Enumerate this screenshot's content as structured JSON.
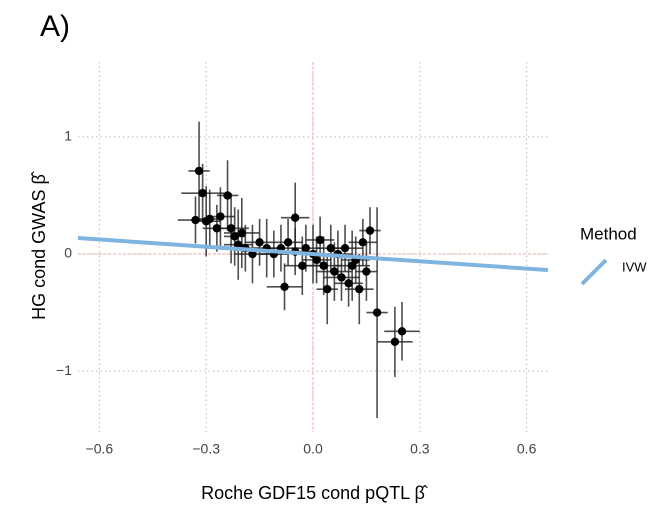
{
  "chart_data": {
    "type": "scatter",
    "title": "A)",
    "x_label": "Roche GDF15 cond pQTL  β̂",
    "y_label": "HG cond GWAS  β̂",
    "xlim": [
      -0.66,
      0.66
    ],
    "ylim": [
      -1.52,
      1.64
    ],
    "xticks": [
      {
        "value": -0.6,
        "label": "−0.6"
      },
      {
        "value": -0.3,
        "label": "−0.3"
      },
      {
        "value": 0,
        "label": "0.0"
      },
      0.3,
      0.6
    ],
    "yticks": [
      {
        "value": -1,
        "label": "−1"
      },
      0,
      1
    ],
    "grid": true,
    "hline": 0,
    "vline": 0,
    "points": {
      "color": "#000000",
      "x": [
        -0.33,
        -0.32,
        -0.31,
        -0.3,
        -0.29,
        -0.27,
        -0.26,
        -0.24,
        -0.23,
        -0.22,
        -0.2,
        -0.19,
        -0.17,
        -0.15,
        -0.13,
        -0.11,
        -0.09,
        -0.08,
        -0.07,
        -0.05,
        -0.05,
        -0.03,
        -0.02,
        0.0,
        0.01,
        0.02,
        0.03,
        0.05,
        0.06,
        0.07,
        0.08,
        0.09,
        0.1,
        0.11,
        0.12,
        0.13,
        0.14,
        0.15,
        0.16,
        0.18,
        0.23,
        0.25,
        -0.21,
        0.04
      ],
      "values": [
        0.29,
        0.71,
        0.52,
        0.28,
        0.3,
        0.22,
        0.32,
        0.5,
        0.22,
        0.15,
        0.18,
        0.05,
        0.0,
        0.1,
        0.05,
        0.0,
        0.05,
        -0.28,
        0.1,
        0.31,
        0.02,
        -0.1,
        0.05,
        0.0,
        -0.05,
        0.12,
        -0.1,
        0.05,
        -0.15,
        0.0,
        -0.2,
        0.05,
        -0.25,
        -0.1,
        -0.05,
        -0.3,
        0.1,
        -0.15,
        0.2,
        -0.5,
        -0.75,
        -0.66,
        0.08,
        -0.3
      ],
      "xerr": [
        0.05,
        0.03,
        0.06,
        0.04,
        0.03,
        0.04,
        0.04,
        0.03,
        0.05,
        0.03,
        0.05,
        0.04,
        0.05,
        0.04,
        0.05,
        0.04,
        0.05,
        0.05,
        0.04,
        0.04,
        0.06,
        0.05,
        0.04,
        0.05,
        0.04,
        0.04,
        0.05,
        0.04,
        0.05,
        0.04,
        0.05,
        0.05,
        0.04,
        0.05,
        0.04,
        0.04,
        0.04,
        0.03,
        0.03,
        0.03,
        0.05,
        0.05,
        0.04,
        0.03
      ],
      "yerr": [
        0.2,
        0.42,
        0.25,
        0.3,
        0.25,
        0.2,
        0.25,
        0.3,
        0.3,
        0.25,
        0.3,
        0.2,
        0.25,
        0.2,
        0.25,
        0.2,
        0.2,
        0.2,
        0.2,
        0.3,
        0.2,
        0.25,
        0.2,
        0.25,
        0.2,
        0.2,
        0.25,
        0.2,
        0.25,
        0.2,
        0.2,
        0.2,
        0.2,
        0.3,
        0.2,
        0.3,
        0.2,
        0.25,
        0.2,
        0.9,
        0.3,
        0.25,
        0.3,
        0.3
      ]
    },
    "legend_title": "Method",
    "series": [
      {
        "name": "IVW",
        "color": "#7fb3e0",
        "x": [
          -0.66,
          0.66
        ],
        "values": [
          0.137,
          -0.137
        ]
      }
    ]
  }
}
